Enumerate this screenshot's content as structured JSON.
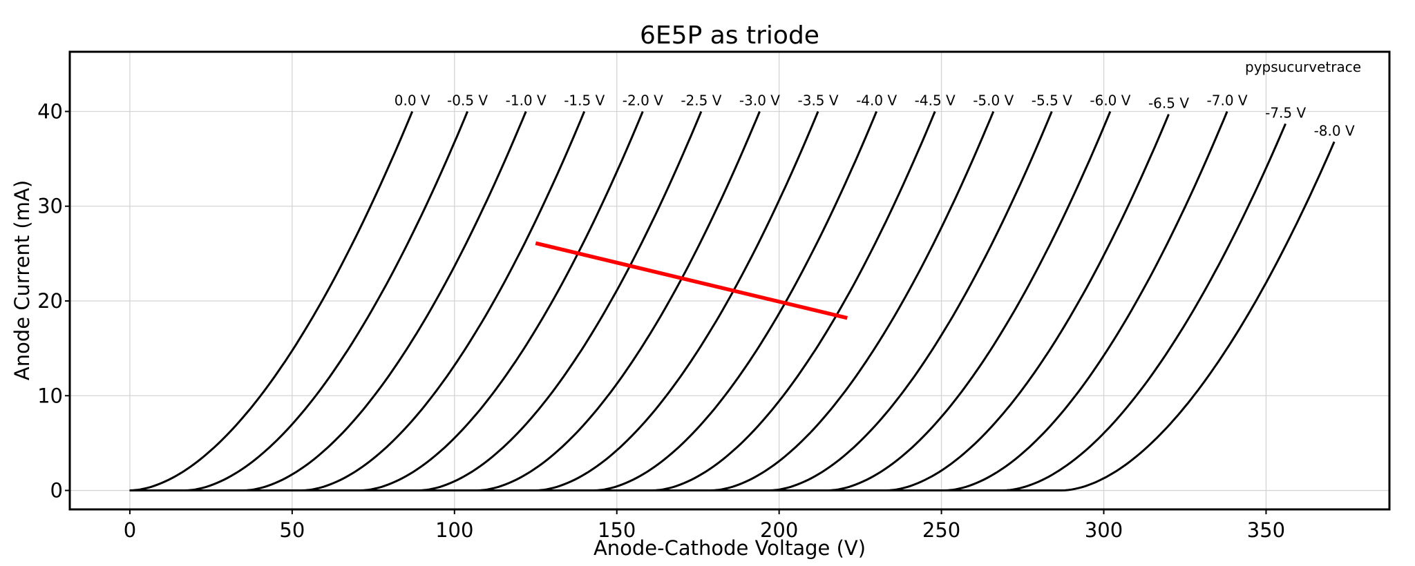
{
  "chart_data": {
    "type": "line",
    "title": "6E5P as triode",
    "watermark": "pypsucurvetrace",
    "xlabel": "Anode-Cathode Voltage (V)",
    "ylabel": "Anode Current (mA)",
    "xlim": [
      -18.5,
      388
    ],
    "ylim": [
      -2,
      46.3
    ],
    "xticks": [
      0,
      50,
      100,
      150,
      200,
      250,
      300,
      350
    ],
    "yticks": [
      0,
      10,
      20,
      30,
      40
    ],
    "grid": true,
    "curve_color": "#000000",
    "series": [
      {
        "name": "0.0 V",
        "v0": 0,
        "x_top": 87,
        "y_top": 40.0
      },
      {
        "name": "-0.5 V",
        "v0": 17,
        "x_top": 104,
        "y_top": 40.0
      },
      {
        "name": "-1.0 V",
        "v0": 35,
        "x_top": 122,
        "y_top": 40.0
      },
      {
        "name": "-1.5 V",
        "v0": 53,
        "x_top": 140,
        "y_top": 40.0
      },
      {
        "name": "-2.0 V",
        "v0": 71,
        "x_top": 158,
        "y_top": 40.0
      },
      {
        "name": "-2.5 V",
        "v0": 89,
        "x_top": 176,
        "y_top": 40.0
      },
      {
        "name": "-3.0 V",
        "v0": 107,
        "x_top": 194,
        "y_top": 40.0
      },
      {
        "name": "-3.5 V",
        "v0": 125,
        "x_top": 212,
        "y_top": 40.0
      },
      {
        "name": "-4.0 V",
        "v0": 143,
        "x_top": 230,
        "y_top": 40.0
      },
      {
        "name": "-4.5 V",
        "v0": 161,
        "x_top": 248,
        "y_top": 40.0
      },
      {
        "name": "-5.0 V",
        "v0": 179,
        "x_top": 266,
        "y_top": 40.0
      },
      {
        "name": "-5.5 V",
        "v0": 197,
        "x_top": 284,
        "y_top": 40.0
      },
      {
        "name": "-6.0 V",
        "v0": 215,
        "x_top": 302,
        "y_top": 40.0
      },
      {
        "name": "-6.5 V",
        "v0": 233,
        "x_top": 320,
        "y_top": 39.7
      },
      {
        "name": "-7.0 V",
        "v0": 251,
        "x_top": 338,
        "y_top": 40.0
      },
      {
        "name": "-7.5 V",
        "v0": 269,
        "x_top": 356,
        "y_top": 38.7
      },
      {
        "name": "-8.0 V",
        "v0": 287,
        "x_top": 371,
        "y_top": 36.8
      }
    ],
    "load_line": {
      "color": "#ff0000",
      "x": [
        125,
        221
      ],
      "y": [
        26.1,
        18.2
      ]
    }
  }
}
